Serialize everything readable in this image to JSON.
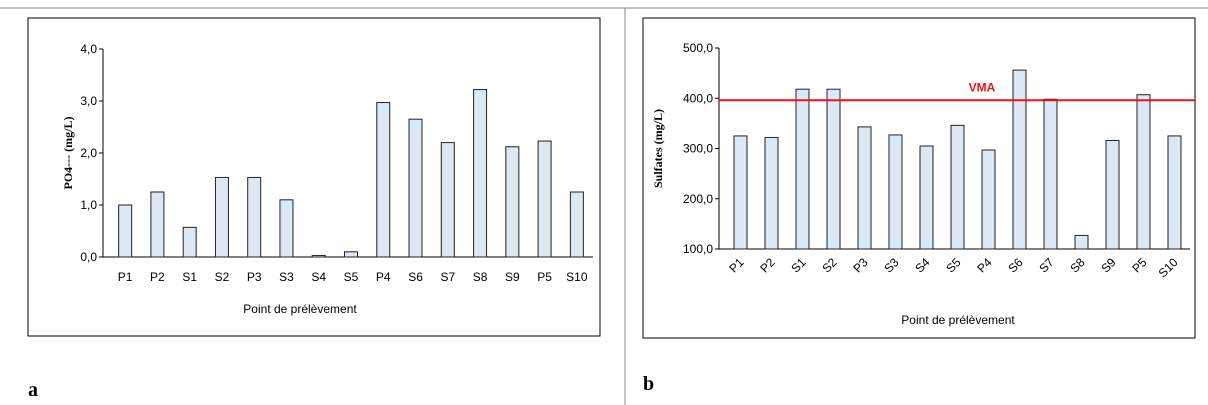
{
  "chart_data": [
    {
      "type": "bar",
      "panel_label": "a",
      "ylabel": "PO4--- (mg/L)",
      "xlabel": "Point de prélèvement",
      "categories": [
        "P1",
        "P2",
        "S1",
        "S2",
        "P3",
        "S3",
        "S4",
        "S5",
        "P4",
        "S6",
        "S7",
        "S8",
        "S9",
        "P5",
        "S10"
      ],
      "values": [
        1.0,
        1.25,
        0.57,
        1.53,
        1.53,
        1.1,
        0.03,
        0.1,
        2.97,
        2.65,
        2.2,
        3.22,
        2.12,
        2.23,
        1.25
      ],
      "color": "#dde8f5",
      "ylim": [
        0,
        4
      ],
      "yticks": [
        {
          "value": 0,
          "label": "0,0"
        },
        {
          "value": 1,
          "label": "1,0"
        },
        {
          "value": 2,
          "label": "2,0"
        },
        {
          "value": 3,
          "label": "3,0"
        },
        {
          "value": 4,
          "label": "4,0"
        }
      ],
      "grid": false
    },
    {
      "type": "bar",
      "panel_label": "b",
      "ylabel": "Sulfates (mg/L)",
      "xlabel": "Point de prélèvement",
      "categories": [
        "P1",
        "P2",
        "S1",
        "S2",
        "P3",
        "S3",
        "S4",
        "S5",
        "P4",
        "S6",
        "S7",
        "S8",
        "S9",
        "P5",
        "S10"
      ],
      "values": [
        325,
        322,
        418,
        418,
        343,
        327,
        305,
        346,
        297,
        456,
        398,
        127,
        316,
        407,
        325
      ],
      "color": "#dde8f5",
      "ylim": [
        100,
        500
      ],
      "yticks": [
        {
          "value": 100,
          "label": "100,0"
        },
        {
          "value": 200,
          "label": "200,0"
        },
        {
          "value": 300,
          "label": "300,0"
        },
        {
          "value": 400,
          "label": "400,0"
        },
        {
          "value": 500,
          "label": "500,0"
        }
      ],
      "reference_line": {
        "label": "VMA",
        "value": 396,
        "color": "#e8141b"
      },
      "grid": false
    }
  ]
}
